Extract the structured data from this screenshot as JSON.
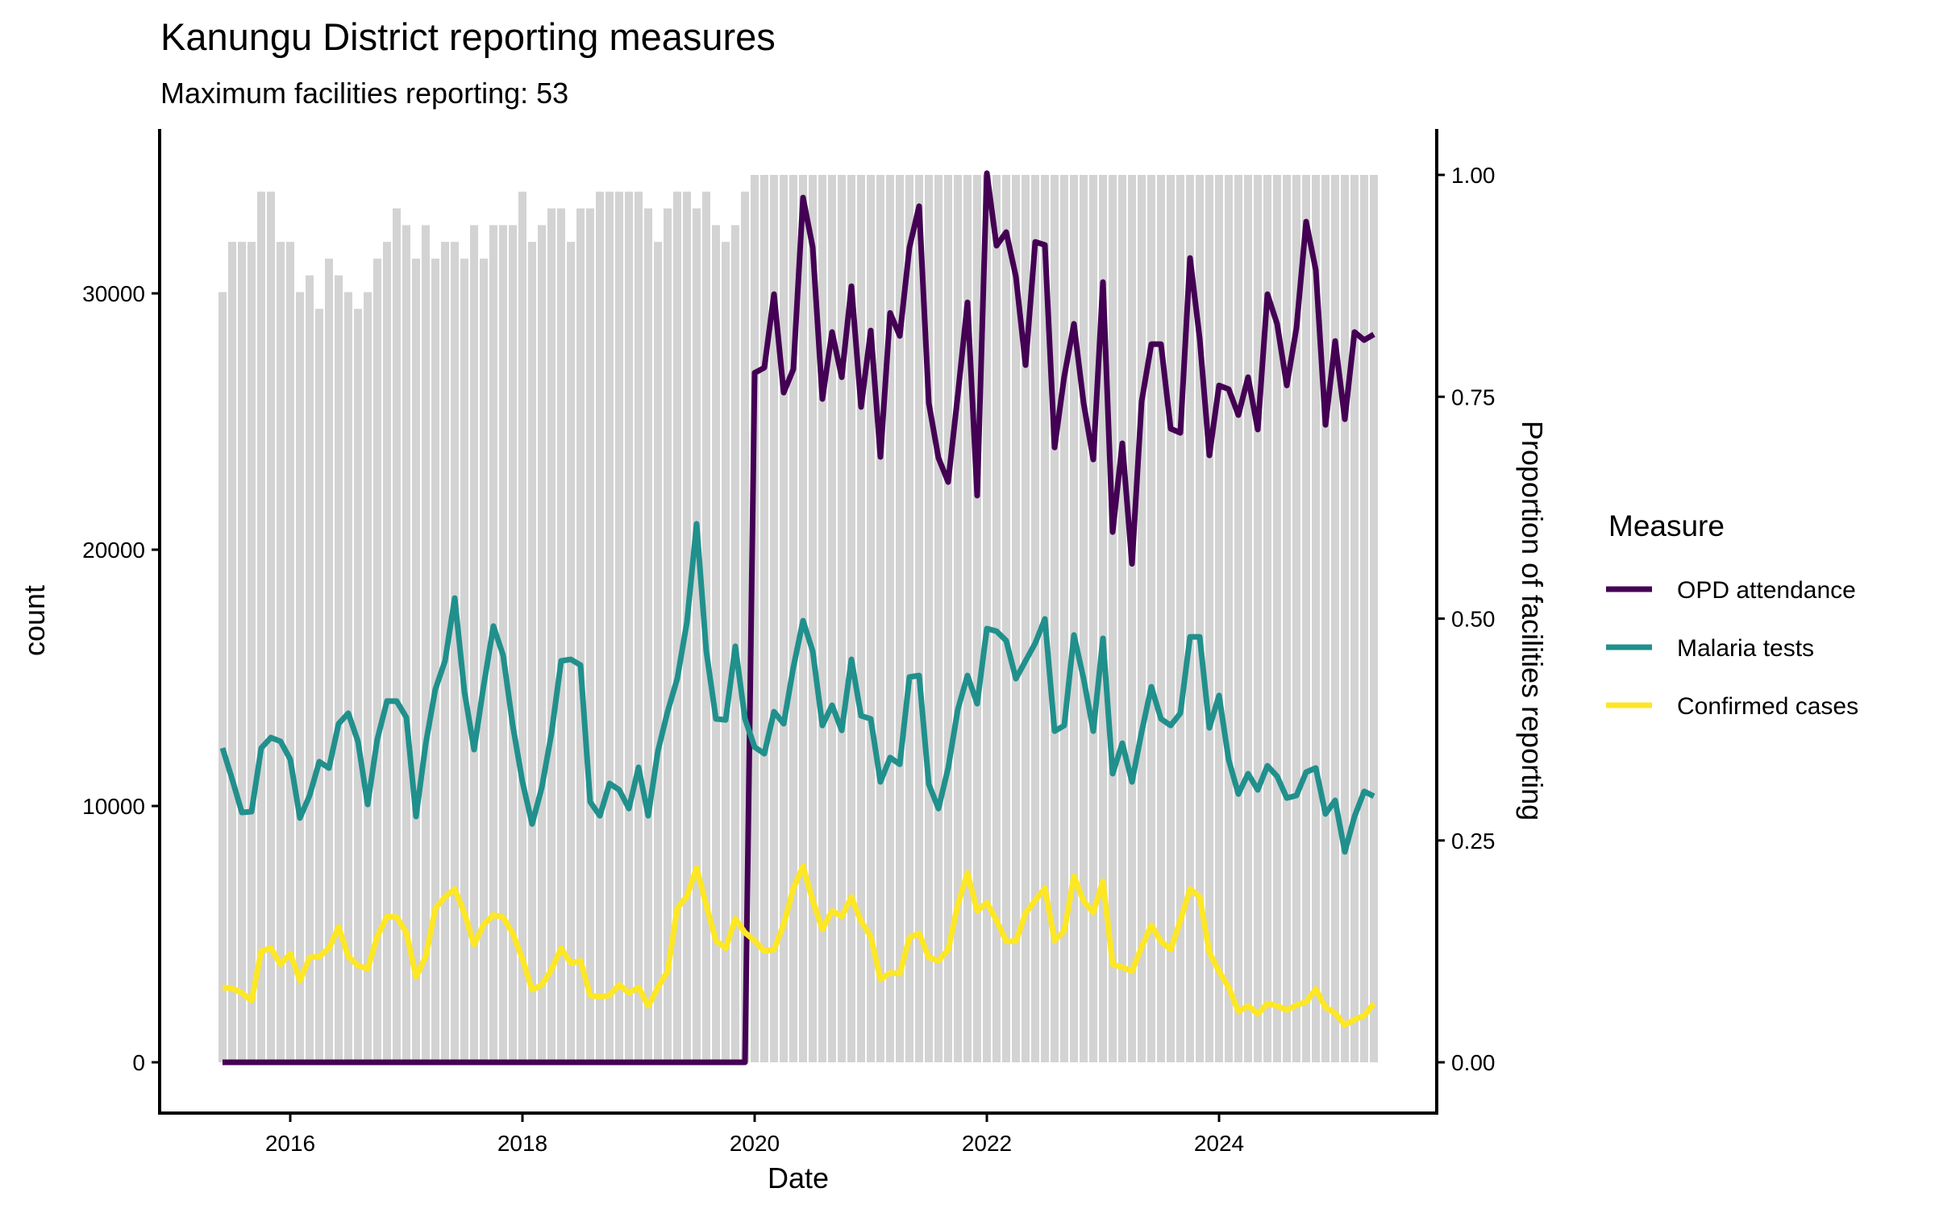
{
  "chart_data": {
    "type": "line",
    "title": "Kanungu District reporting measures",
    "subtitle": "Maximum facilities reporting: 53",
    "xlabel": "Date",
    "ylabel": "count",
    "y2label": "Proportion of facilities reporting",
    "xlim": [
      "2014-12",
      "2025-11"
    ],
    "ylim": [
      -1400,
      36500
    ],
    "y2lim": [
      -0.04,
      1.05
    ],
    "x_ticks": [
      {
        "label": "2016",
        "month_index": 7
      },
      {
        "label": "2018",
        "month_index": 31
      },
      {
        "label": "2020",
        "month_index": 55
      },
      {
        "label": "2022",
        "month_index": 79
      },
      {
        "label": "2024",
        "month_index": 103
      }
    ],
    "y_ticks": [
      {
        "label": "0",
        "value": 0
      },
      {
        "label": "10000",
        "value": 10000
      },
      {
        "label": "20000",
        "value": 20000
      },
      {
        "label": "30000",
        "value": 30000
      }
    ],
    "y2_ticks": [
      {
        "label": "0.00",
        "value": 0
      },
      {
        "label": "0.25",
        "value": 0.25
      },
      {
        "label": "0.50",
        "value": 0.5
      },
      {
        "label": "0.75",
        "value": 0.75
      },
      {
        "label": "1.00",
        "value": 1
      }
    ],
    "x_start": "2015-06",
    "x_step": "month",
    "n_months": 120,
    "max_facilities": 53,
    "facilities_reporting": [
      46,
      49,
      49,
      49,
      52,
      52,
      49,
      49,
      46,
      47,
      45,
      48,
      47,
      46,
      45,
      46,
      48,
      49,
      51,
      50,
      48,
      50,
      48,
      49,
      49,
      48,
      50,
      48,
      50,
      50,
      50,
      52,
      49,
      50,
      51,
      51,
      49,
      51,
      51,
      52,
      52,
      52,
      52,
      52,
      51,
      49,
      51,
      52,
      52,
      51,
      52,
      50,
      49,
      50,
      52,
      53,
      53,
      53,
      53,
      53,
      53,
      53,
      53,
      53,
      53,
      53,
      53,
      53,
      53,
      53,
      53,
      53,
      53,
      53,
      53,
      53,
      53,
      53,
      53,
      53,
      53,
      53,
      53,
      53,
      53,
      53,
      53,
      53,
      53,
      53,
      53,
      53,
      53,
      53,
      53,
      53,
      53,
      53,
      53,
      53,
      53,
      53,
      53,
      53,
      53,
      53,
      53,
      53,
      53,
      53,
      53,
      53,
      53,
      53,
      53,
      53,
      53,
      53,
      53,
      53
    ],
    "bar_color": "#d3d3d3",
    "legend_title": "Measure",
    "legend_position": "right",
    "series": [
      {
        "name": "OPD attendance",
        "color": "#440154",
        "values": [
          0,
          0,
          0,
          0,
          0,
          0,
          0,
          0,
          0,
          0,
          0,
          0,
          0,
          0,
          0,
          0,
          0,
          0,
          0,
          0,
          0,
          0,
          0,
          0,
          0,
          0,
          0,
          0,
          0,
          0,
          0,
          0,
          0,
          0,
          0,
          0,
          0,
          0,
          0,
          0,
          0,
          0,
          0,
          0,
          0,
          0,
          0,
          0,
          0,
          0,
          0,
          0,
          0,
          0,
          0,
          26900,
          27100,
          29970,
          26130,
          27040,
          33740,
          31800,
          25880,
          28490,
          26730,
          30280,
          25570,
          28550,
          23620,
          29240,
          28340,
          31800,
          33400,
          25720,
          23580,
          22640,
          26040,
          29650,
          22110,
          34690,
          31860,
          32390,
          30660,
          27200,
          32010,
          31890,
          23990,
          26760,
          28810,
          25720,
          23520,
          30440,
          20690,
          24150,
          19450,
          25790,
          28020,
          28020,
          24720,
          24560,
          31380,
          28240,
          23680,
          26410,
          26260,
          25250,
          26730,
          24690,
          29970,
          28810,
          26410,
          28650,
          32800,
          30910,
          24870,
          28140,
          25090,
          28490,
          28180,
          28400
        ]
      },
      {
        "name": "Malaria tests",
        "color": "#21908C",
        "values": [
          12260,
          11040,
          9750,
          9780,
          12260,
          12670,
          12520,
          11820,
          9530,
          10410,
          11730,
          11480,
          13210,
          13620,
          12520,
          10060,
          12610,
          14090,
          14090,
          13460,
          9590,
          12420,
          14560,
          15660,
          18110,
          14470,
          12200,
          14720,
          17020,
          15880,
          13140,
          10940,
          9300,
          10720,
          12830,
          15660,
          15720,
          15500,
          10160,
          9620,
          10880,
          10630,
          9900,
          11510,
          9620,
          12140,
          13680,
          14970,
          17170,
          21010,
          16040,
          13400,
          13360,
          16230,
          13400,
          12300,
          12040,
          13680,
          13210,
          15410,
          17230,
          16040,
          13140,
          13930,
          12950,
          15720,
          13520,
          13400,
          10940,
          11890,
          11630,
          15030,
          15090,
          10850,
          9900,
          11480,
          13770,
          15090,
          13990,
          16920,
          16820,
          16450,
          14970,
          15660,
          16350,
          17300,
          12920,
          13140,
          16670,
          14970,
          12920,
          16540,
          11260,
          12450,
          10940,
          12890,
          14650,
          13400,
          13140,
          13620,
          16600,
          16600,
          13050,
          14310,
          11790,
          10470,
          11260,
          10630,
          11570,
          11160,
          10310,
          10410,
          11320,
          11480,
          9690,
          10220,
          8210,
          9590,
          10570,
          10380
        ]
      },
      {
        "name": "Confirmed cases",
        "color": "#FDE725",
        "values": [
          2920,
          2880,
          2710,
          2400,
          4340,
          4450,
          3820,
          4240,
          3190,
          4090,
          4130,
          4450,
          5280,
          4130,
          3770,
          3650,
          4910,
          5690,
          5660,
          5060,
          3330,
          4130,
          6010,
          6450,
          6760,
          5820,
          4590,
          5380,
          5750,
          5660,
          5030,
          4030,
          2830,
          3020,
          3620,
          4450,
          3870,
          3960,
          2610,
          2550,
          2610,
          3020,
          2710,
          2920,
          2200,
          2920,
          3550,
          6010,
          6480,
          7580,
          6130,
          4750,
          4450,
          5600,
          5060,
          4750,
          4340,
          4400,
          5380,
          6790,
          7640,
          6320,
          5190,
          5910,
          5690,
          6450,
          5500,
          4910,
          3240,
          3490,
          3460,
          4870,
          5030,
          4090,
          3960,
          4400,
          6160,
          7390,
          5910,
          6230,
          5530,
          4720,
          4720,
          5820,
          6320,
          6790,
          4750,
          5130,
          7260,
          6290,
          5850,
          7070,
          3820,
          3710,
          3550,
          4500,
          5350,
          4720,
          4400,
          5530,
          6760,
          6450,
          4280,
          3550,
          2920,
          1980,
          2200,
          1890,
          2300,
          2200,
          2040,
          2230,
          2360,
          2860,
          2140,
          1920,
          1450,
          1670,
          1820,
          2300
        ]
      }
    ]
  }
}
